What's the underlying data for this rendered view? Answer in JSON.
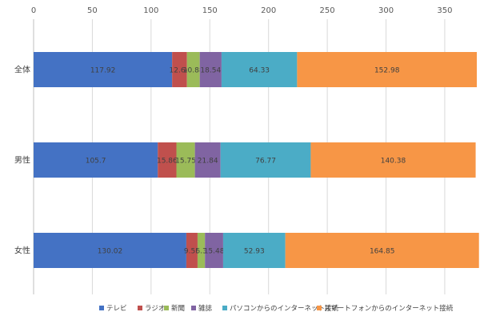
{
  "chart_data": {
    "type": "bar",
    "orientation": "horizontal",
    "stacked": true,
    "categories": [
      "全体",
      "男性",
      "女性"
    ],
    "series": [
      {
        "name": "テレビ",
        "color": "#4472C4",
        "values": [
          117.92,
          105.7,
          130.02
        ]
      },
      {
        "name": "ラジオ",
        "color": "#C0504D",
        "values": [
          12.64,
          15.86,
          9.55
        ]
      },
      {
        "name": "新聞",
        "color": "#9BBB59",
        "values": [
          10.88,
          15.75,
          6.3
        ]
      },
      {
        "name": "雑誌",
        "color": "#8064A2",
        "values": [
          18.54,
          21.84,
          15.48
        ]
      },
      {
        "name": "パソコンからのインターネット接続",
        "color": "#4BACC6",
        "values": [
          64.33,
          76.77,
          52.93
        ]
      },
      {
        "name": "スマートフォンからのインターネット接続",
        "color": "#F79646",
        "values": [
          152.98,
          140.38,
          164.85
        ]
      }
    ],
    "data_labels": [
      [
        "117.92",
        "12.64",
        "10.88",
        "18.54",
        "64.33",
        "152.98"
      ],
      [
        "105.7",
        "15.86",
        "15.75",
        "21.84",
        "76.77",
        "140.38"
      ],
      [
        "130.02",
        "9.55",
        "6.3",
        "15.48",
        "52.93",
        "164.85"
      ]
    ],
    "xlim": [
      0,
      380
    ],
    "xticks": [
      0,
      50,
      100,
      150,
      200,
      250,
      300,
      350
    ],
    "x_axis_position": "top",
    "grid": true,
    "legend_position": "bottom"
  }
}
